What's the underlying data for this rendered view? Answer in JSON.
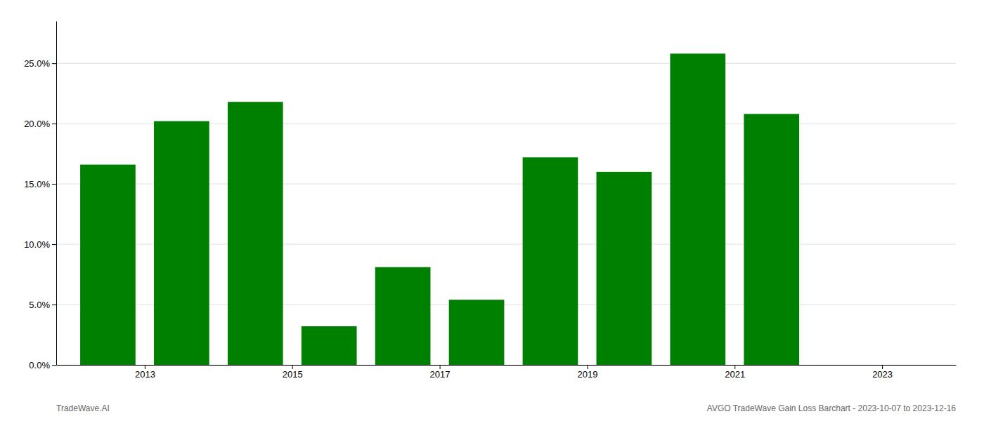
{
  "chart_data": {
    "type": "bar",
    "x": [
      2012,
      2013,
      2014,
      2015,
      2016,
      2017,
      2018,
      2019,
      2020,
      2021
    ],
    "values": [
      0.166,
      0.202,
      0.218,
      0.032,
      0.081,
      0.054,
      0.172,
      0.16,
      0.258,
      0.208
    ],
    "color": "#008000",
    "xlim": [
      2011.3,
      2023.5
    ],
    "xticks": [
      {
        "value": 2012.5,
        "label": "2013"
      },
      {
        "value": 2014.5,
        "label": "2015"
      },
      {
        "value": 2016.5,
        "label": "2017"
      },
      {
        "value": 2018.5,
        "label": "2019"
      },
      {
        "value": 2020.5,
        "label": "2021"
      },
      {
        "value": 2022.5,
        "label": "2023"
      }
    ],
    "ylim": [
      0,
      0.285
    ],
    "yticks": [
      {
        "value": 0.0,
        "label": "0.0%"
      },
      {
        "value": 0.05,
        "label": "5.0%"
      },
      {
        "value": 0.1,
        "label": "10.0%"
      },
      {
        "value": 0.15,
        "label": "15.0%"
      },
      {
        "value": 0.2,
        "label": "20.0%"
      },
      {
        "value": 0.25,
        "label": "25.0%"
      }
    ],
    "grid": true,
    "annotations": [
      "TradeWave.AI",
      "AVGO TradeWave Gain Loss Barchart - 2023-10-07 to 2023-12-16"
    ]
  }
}
